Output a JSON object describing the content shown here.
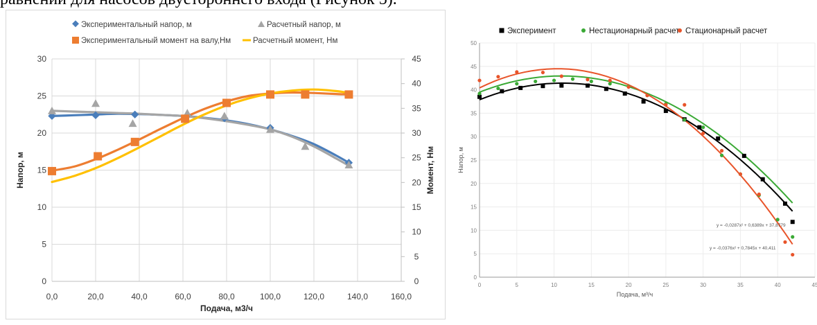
{
  "page_text": "равнений для насосов двустороннего входа (Рисунок 5).",
  "chart_data": [
    {
      "type": "line",
      "x_axis": {
        "label": "Подача, м3/ч",
        "min": 0,
        "max": 160,
        "ticks": [
          "0,0",
          "20,0",
          "40,0",
          "60,0",
          "80,0",
          "100,0",
          "120,0",
          "140,0",
          "160,0"
        ],
        "tick_values": [
          0,
          20,
          40,
          60,
          80,
          100,
          120,
          140,
          160
        ]
      },
      "y_axis_left": {
        "label": "Напор, м",
        "min": 0,
        "max": 30,
        "ticks": [
          "0",
          "5",
          "10",
          "15",
          "20",
          "25",
          "30"
        ],
        "tick_values": [
          0,
          5,
          10,
          15,
          20,
          25,
          30
        ]
      },
      "y_axis_right": {
        "label": "Момент, Нм",
        "min": 0,
        "max": 45,
        "ticks": [
          "0",
          "5",
          "10",
          "15",
          "20",
          "25",
          "30",
          "35",
          "40",
          "45"
        ],
        "tick_values": [
          0,
          5,
          10,
          15,
          20,
          25,
          30,
          35,
          40,
          45
        ]
      },
      "grid": true,
      "legend_position": "top",
      "series": [
        {
          "name": "Экспериментальный напор, м",
          "axis": "left",
          "marker": "diamond",
          "color": "#4a7ebb",
          "x": [
            0,
            20,
            38,
            62,
            79,
            100,
            136
          ],
          "y": [
            22.3,
            22.4,
            22.5,
            22.4,
            22.0,
            20.7,
            16.0
          ],
          "curve_x": [
            0,
            10,
            20,
            30,
            40,
            50,
            60,
            70,
            80,
            90,
            100,
            110,
            120,
            130,
            136
          ],
          "curve_y": [
            22.3,
            22.4,
            22.5,
            22.6,
            22.55,
            22.45,
            22.3,
            22.05,
            21.7,
            21.2,
            20.5,
            19.6,
            18.5,
            17.0,
            16.0
          ]
        },
        {
          "name": "Расчетный напор, м",
          "axis": "left",
          "marker": "triangle",
          "color": "#a5a5a5",
          "x": [
            0,
            20,
            37,
            62,
            79,
            100,
            116,
            136
          ],
          "y": [
            23.0,
            24.0,
            21.3,
            22.7,
            22.3,
            20.5,
            18.2,
            15.7
          ],
          "curve_x": [
            0,
            10,
            20,
            30,
            40,
            50,
            60,
            70,
            80,
            90,
            100,
            110,
            120,
            130,
            136
          ],
          "curve_y": [
            23.0,
            22.9,
            22.8,
            22.7,
            22.6,
            22.45,
            22.3,
            22.0,
            21.6,
            21.1,
            20.5,
            19.5,
            18.2,
            16.6,
            15.6
          ]
        },
        {
          "name": "Экспериментальный момент на валу,Нм",
          "axis": "right",
          "marker": "square",
          "color": "#ed7d31",
          "x": [
            0,
            21,
            38,
            61,
            80,
            100,
            116,
            136
          ],
          "y": [
            22.3,
            25.3,
            28.2,
            32.9,
            36.1,
            37.8,
            37.8,
            37.8
          ],
          "curve_x": [
            0,
            10,
            20,
            30,
            40,
            50,
            60,
            70,
            80,
            90,
            100,
            110,
            120,
            130,
            136
          ],
          "curve_y": [
            22.4,
            23.2,
            24.7,
            26.6,
            28.7,
            30.9,
            33.0,
            34.9,
            36.4,
            37.5,
            38.0,
            38.2,
            38.1,
            37.9,
            37.8
          ]
        },
        {
          "name": "Расчетный момент, Нм",
          "axis": "right",
          "marker": "none",
          "color": "#ffc000",
          "x": [
            0,
            10,
            20,
            30,
            40,
            50,
            60,
            70,
            80,
            90,
            100,
            110,
            120,
            130,
            136
          ],
          "y": [
            20.1,
            21.3,
            22.9,
            24.9,
            27.1,
            29.4,
            31.7,
            33.8,
            35.6,
            37.0,
            38.0,
            38.6,
            38.8,
            38.5,
            38.1
          ]
        }
      ]
    },
    {
      "type": "scatter",
      "x_axis": {
        "label": "Подача, м³/ч",
        "min": 0,
        "max": 45,
        "ticks": [
          "0",
          "5",
          "10",
          "15",
          "20",
          "25",
          "30",
          "35",
          "40",
          "45"
        ],
        "tick_values": [
          0,
          5,
          10,
          15,
          20,
          25,
          30,
          35,
          40,
          45
        ]
      },
      "y_axis": {
        "label": "Напор, м",
        "min": 0,
        "max": 50,
        "ticks": [
          "0",
          "5",
          "10",
          "15",
          "20",
          "25",
          "30",
          "35",
          "40",
          "45",
          "50"
        ],
        "tick_values": [
          0,
          5,
          10,
          15,
          20,
          25,
          30,
          35,
          40,
          45,
          50
        ]
      },
      "grid": true,
      "legend_position": "top",
      "series": [
        {
          "name": "Эксперимент",
          "marker": "square",
          "color": "#000000",
          "x": [
            0,
            3,
            5.5,
            8.5,
            11,
            14.5,
            17,
            19.5,
            22,
            25,
            27.5,
            29.5,
            32,
            35.5,
            38,
            41,
            42
          ],
          "y": [
            38.5,
            39.7,
            40.4,
            40.8,
            40.9,
            40.9,
            40.2,
            39.2,
            37.5,
            35.5,
            33.7,
            32,
            29.6,
            25.9,
            20.9,
            15.7,
            11.8
          ],
          "fit": {
            "a": -0.0287,
            "b": 0.6389,
            "c": 37.8779
          }
        },
        {
          "name": "Нестационарный расчет",
          "marker": "dot",
          "color": "#3aa935",
          "x": [
            0,
            2.5,
            5,
            7.5,
            10,
            12.5,
            15,
            17.5,
            20,
            22.5,
            25,
            27.5,
            30,
            32.5,
            35,
            37.5,
            40,
            42
          ],
          "y": [
            39.2,
            40.3,
            41.3,
            41.8,
            42.0,
            42.3,
            41.8,
            41.3,
            40.7,
            38.8,
            37.0,
            33.6,
            32.0,
            26.0,
            22.0,
            17.5,
            12.3,
            8.6
          ],
          "fit": {
            "a": -0.0283,
            "b": 0.6253,
            "c": 39.5
          }
        },
        {
          "name": "Стационарный расчет",
          "marker": "dot",
          "color": "#e8542a",
          "x": [
            0,
            2.5,
            5,
            8.5,
            11,
            14.5,
            17.5,
            20,
            22.5,
            25,
            27.5,
            30,
            32.5,
            35,
            37.5,
            41,
            42
          ],
          "y": [
            42.0,
            42.8,
            43.8,
            43.7,
            42.9,
            42.2,
            42.0,
            40.6,
            38.8,
            36.8,
            36.8,
            30.7,
            27.0,
            22.0,
            17.7,
            7.5,
            4.8
          ],
          "fit": {
            "a": -0.0376,
            "b": 0.7845,
            "c": 40.411
          }
        }
      ],
      "equations": [
        "y = -0,0287x² + 0,6389x + 37,8779",
        "y = -0,0376x² + 0,7845x + 40,411"
      ]
    }
  ]
}
